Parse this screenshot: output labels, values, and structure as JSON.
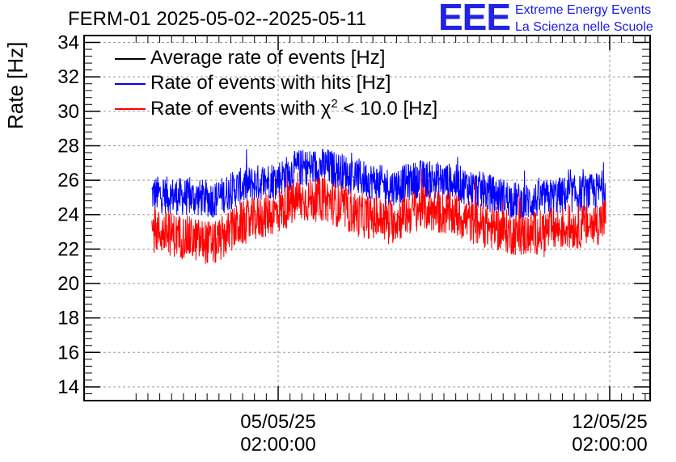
{
  "chart_data": {
    "type": "line",
    "title": "FERM-01 2025-05-02--2025-05-11",
    "ylabel": "Rate [Hz]",
    "xlabel": "",
    "ylim": [
      13.2,
      34.4
    ],
    "y_ticks": [
      14,
      16,
      18,
      20,
      22,
      24,
      26,
      28,
      30,
      32,
      34
    ],
    "x_ticks": [
      {
        "date": "05/05/25",
        "time": "02:00:00"
      },
      {
        "date": "12/05/25",
        "time": "02:00:00"
      }
    ],
    "grid": true,
    "legend_position": "top-left",
    "series": [
      {
        "name": "Average rate of events [Hz]",
        "color": "#000000",
        "noise_amplitude": 0.0,
        "x": [
          "2025-05-02T10:00",
          "2025-05-03T06:00",
          "2025-05-03T18:00",
          "2025-05-04T06:00",
          "2025-05-05T02:00",
          "2025-05-05T12:00",
          "2025-05-06T02:00",
          "2025-05-06T18:00",
          "2025-05-07T12:00",
          "2025-05-08T02:00",
          "2025-05-08T18:00",
          "2025-05-09T12:00",
          "2025-05-10T06:00",
          "2025-05-11T00:00",
          "2025-05-11T18:00",
          "2025-05-12T00:00"
        ],
        "values": [
          25.2,
          25.0,
          24.9,
          25.6,
          26.1,
          26.7,
          26.8,
          26.2,
          25.6,
          26.1,
          25.9,
          25.3,
          24.7,
          25.1,
          25.3,
          25.6
        ]
      },
      {
        "name": "Rate of events with hits [Hz]",
        "color": "#0000ff",
        "noise_amplitude": 1.1,
        "x": [
          "2025-05-02T10:00",
          "2025-05-03T06:00",
          "2025-05-03T18:00",
          "2025-05-04T06:00",
          "2025-05-05T02:00",
          "2025-05-05T12:00",
          "2025-05-06T02:00",
          "2025-05-06T18:00",
          "2025-05-07T12:00",
          "2025-05-08T02:00",
          "2025-05-08T18:00",
          "2025-05-09T12:00",
          "2025-05-10T06:00",
          "2025-05-11T00:00",
          "2025-05-11T18:00",
          "2025-05-12T00:00"
        ],
        "values": [
          25.2,
          25.0,
          24.9,
          25.6,
          26.1,
          26.7,
          26.8,
          26.2,
          25.6,
          26.1,
          25.9,
          25.3,
          24.7,
          25.1,
          25.3,
          25.6
        ]
      },
      {
        "name": "Rate of events with χ² < 10.0 [Hz]",
        "color": "#ff0000",
        "noise_amplitude": 1.3,
        "x": [
          "2025-05-02T10:00",
          "2025-05-03T06:00",
          "2025-05-03T18:00",
          "2025-05-04T06:00",
          "2025-05-05T02:00",
          "2025-05-05T12:00",
          "2025-05-06T02:00",
          "2025-05-06T18:00",
          "2025-05-07T12:00",
          "2025-05-08T02:00",
          "2025-05-08T18:00",
          "2025-05-09T12:00",
          "2025-05-10T06:00",
          "2025-05-11T00:00",
          "2025-05-11T18:00",
          "2025-05-12T00:00"
        ],
        "values": [
          23.1,
          22.6,
          22.3,
          23.4,
          24.2,
          24.8,
          24.9,
          24.0,
          23.6,
          24.4,
          24.0,
          23.3,
          22.8,
          23.2,
          23.4,
          23.8
        ]
      }
    ]
  },
  "logo": {
    "mark": "EEE",
    "line1": "Extreme Energy Events",
    "line2": "La Scienza nelle Scuole"
  },
  "legend": {
    "avg_label": "Average rate of events [Hz]",
    "hits_label": "Rate of events with hits [Hz]",
    "chi2_label_prefix": "Rate of events with χ",
    "chi2_label_sup": "2",
    "chi2_label_suffix": " < 10.0 [Hz]"
  }
}
